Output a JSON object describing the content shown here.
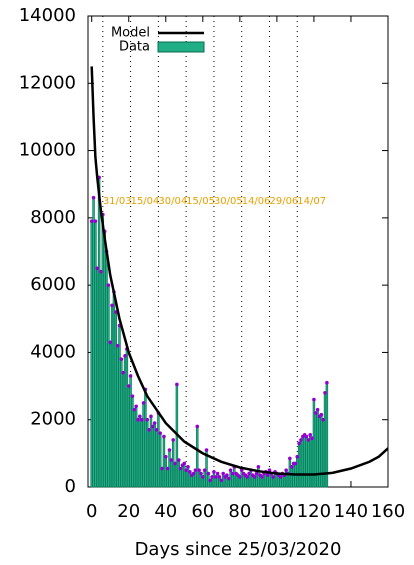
{
  "chart_data": {
    "type": "bar",
    "xlabel": "Days since 25/03/2020",
    "xlim": [
      -2,
      160
    ],
    "xticks": [
      0,
      20,
      40,
      60,
      80,
      100,
      120,
      140,
      160
    ],
    "ylim": [
      0,
      14000
    ],
    "yticks": [
      0,
      2000,
      4000,
      6000,
      8000,
      10000,
      12000,
      14000
    ],
    "legend": "top-left",
    "series": [
      {
        "name": "Data",
        "color": "#1fae85",
        "edge": "#0a6e50",
        "point_color": "#9400d3",
        "x": [
          0,
          1,
          2,
          3,
          4,
          5,
          6,
          7,
          8,
          9,
          10,
          11,
          12,
          13,
          14,
          15,
          16,
          17,
          18,
          19,
          20,
          21,
          22,
          23,
          24,
          25,
          26,
          27,
          28,
          29,
          30,
          31,
          32,
          33,
          34,
          35,
          36,
          37,
          38,
          39,
          40,
          41,
          42,
          43,
          44,
          45,
          46,
          47,
          48,
          49,
          50,
          51,
          52,
          53,
          54,
          55,
          56,
          57,
          58,
          59,
          60,
          61,
          62,
          63,
          64,
          65,
          66,
          67,
          68,
          69,
          70,
          71,
          72,
          73,
          74,
          75,
          76,
          77,
          78,
          79,
          80,
          81,
          82,
          83,
          84,
          85,
          86,
          87,
          88,
          89,
          90,
          91,
          92,
          93,
          94,
          95,
          96,
          97,
          98,
          99,
          100,
          101,
          102,
          103,
          104,
          105,
          106,
          107,
          108,
          109,
          110,
          111,
          112,
          113,
          114,
          115,
          116,
          117,
          118,
          119,
          120,
          121,
          122,
          123,
          124,
          125,
          126,
          127
        ],
        "values": [
          7900,
          8600,
          7900,
          6500,
          9200,
          6400,
          8100,
          7600,
          7000,
          6000,
          4300,
          5400,
          5800,
          5200,
          4200,
          4800,
          3800,
          3400,
          3900,
          4100,
          3000,
          3300,
          2700,
          2300,
          2400,
          2000,
          2100,
          2000,
          2500,
          2900,
          2000,
          1700,
          2100,
          1800,
          1900,
          1700,
          2200,
          1600,
          550,
          1500,
          900,
          550,
          1100,
          800,
          1400,
          700,
          3050,
          800,
          550,
          650,
          700,
          500,
          600,
          450,
          350,
          400,
          500,
          1800,
          500,
          400,
          300,
          500,
          1100,
          400,
          200,
          300,
          450,
          300,
          400,
          300,
          200,
          400,
          300,
          350,
          250,
          500,
          400,
          600,
          400,
          350,
          300,
          500,
          400,
          350,
          300,
          400,
          500,
          350,
          300,
          400,
          600,
          350,
          300,
          400,
          450,
          350,
          500,
          400,
          300,
          450,
          400,
          350,
          300,
          400,
          350,
          500,
          400,
          850,
          600,
          700,
          700,
          900,
          1300,
          1400,
          1500,
          1550,
          1500,
          1400,
          1550,
          1450,
          2600,
          2200,
          2300,
          2100,
          2150,
          2000,
          2800,
          3100
        ]
      },
      {
        "name": "Model",
        "color": "#000000",
        "x": [
          0,
          1,
          2,
          3,
          5,
          7,
          10,
          15,
          20,
          25,
          30,
          40,
          50,
          60,
          70,
          80,
          90,
          100,
          110,
          120,
          130,
          140,
          150,
          155,
          160
        ],
        "values": [
          12500,
          11000,
          9800,
          9200,
          8200,
          7400,
          6300,
          5000,
          4000,
          3300,
          2700,
          1900,
          1350,
          1000,
          750,
          580,
          470,
          400,
          370,
          370,
          420,
          550,
          750,
          900,
          1150
        ]
      }
    ],
    "date_lines": [
      {
        "x": 6,
        "label": "31/03"
      },
      {
        "x": 21,
        "label": "15/04"
      },
      {
        "x": 36,
        "label": "30/04"
      },
      {
        "x": 51,
        "label": "15/05"
      },
      {
        "x": 66,
        "label": "30/05"
      },
      {
        "x": 81,
        "label": "14/06"
      },
      {
        "x": 96,
        "label": "29/06"
      },
      {
        "x": 111,
        "label": "14/07"
      }
    ],
    "date_label_y": 8500,
    "date_label_color": "#e8a000"
  }
}
